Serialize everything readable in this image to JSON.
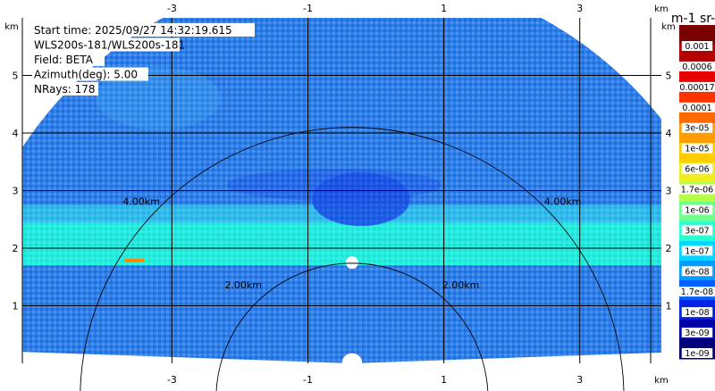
{
  "chart_data": {
    "type": "heatmap",
    "title": "",
    "info_lines": [
      "Start time: 2025/09/27 14:32:19.615",
      "WLS200s-181/WLS200s-181",
      "Field: BETA",
      "Azimuth(deg): 5.00",
      "NRays: 178"
    ],
    "x_unit": "km",
    "y_unit": "km",
    "xlim": [
      -5.2,
      4.2
    ],
    "ylim": [
      0,
      6.0
    ],
    "x_ticks": [
      -3,
      -1,
      1,
      3
    ],
    "y_ticks": [
      1,
      2,
      3,
      4,
      5
    ],
    "range_rings": [
      {
        "radius_km": 2.0,
        "label": "2.00km"
      },
      {
        "radius_km": 4.0,
        "label": "4.00km"
      }
    ],
    "colorbar": {
      "title": "m-1 sr-1",
      "scale": "log",
      "labels": [
        "0.001",
        "0.0006",
        "0.00017",
        "0.0001",
        "3e-05",
        "1e-05",
        "6e-06",
        "1.7e-06",
        "1e-06",
        "3e-07",
        "1e-07",
        "6e-08",
        "1.7e-08",
        "1e-08",
        "3e-09",
        "1e-09"
      ],
      "colors": [
        "#7a0000",
        "#b40000",
        "#e60000",
        "#ff3300",
        "#ff6a00",
        "#ff9d00",
        "#ffcc00",
        "#eeee22",
        "#b4ff46",
        "#6eff8c",
        "#2cffd0",
        "#00d8ff",
        "#009cff",
        "#0060ff",
        "#0024e6",
        "#0000a8",
        "#00007a"
      ]
    },
    "scan": {
      "center_x_km": -0.35,
      "max_range_km": 5.8,
      "min_elevation_deg": 2.0
    },
    "colors": {
      "sky_mid": "#2a7ff0",
      "sky_light": "#3aa0f0",
      "sky_dark": "#1a52e8",
      "band_cyan": "#22f0e0",
      "band_light": "#30c8f0",
      "hot_patch": "#ff8a00"
    }
  }
}
